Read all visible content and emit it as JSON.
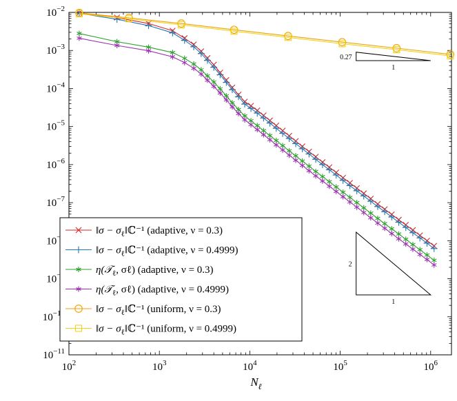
{
  "chart_data": {
    "type": "line",
    "xscale": "log",
    "yscale": "log",
    "xlim": [
      100,
      1700000
    ],
    "ylim": [
      1e-11,
      0.01
    ],
    "xlabel": "N_ℓ",
    "ylabel": "",
    "title": "",
    "grid": false,
    "legend_position": "bottom-left",
    "x_tick_labels": [
      {
        "value": 100,
        "base": "10",
        "exp": "2"
      },
      {
        "value": 1000,
        "base": "10",
        "exp": "3"
      },
      {
        "value": 10000,
        "base": "10",
        "exp": "4"
      },
      {
        "value": 100000,
        "base": "10",
        "exp": "5"
      },
      {
        "value": 1000000,
        "base": "10",
        "exp": "6"
      }
    ],
    "y_tick_labels": [
      {
        "value": 1e-11,
        "base": "10",
        "exp": "−11"
      },
      {
        "value": 1e-10,
        "base": "10",
        "exp": "−10"
      },
      {
        "value": 1e-09,
        "base": "10",
        "exp": "−9"
      },
      {
        "value": 1e-08,
        "base": "10",
        "exp": "−8"
      },
      {
        "value": 1e-07,
        "base": "10",
        "exp": "−7"
      },
      {
        "value": 1e-06,
        "base": "10",
        "exp": "−6"
      },
      {
        "value": 1e-05,
        "base": "10",
        "exp": "−5"
      },
      {
        "value": 0.0001,
        "base": "10",
        "exp": "−4"
      },
      {
        "value": 0.001,
        "base": "10",
        "exp": "−3"
      },
      {
        "value": 0.01,
        "base": "10",
        "exp": "−2"
      }
    ],
    "series": [
      {
        "name": "‖σ − σℓ‖ℂ⁻¹ (adaptive, ν = 0.3)",
        "color": "#d62728",
        "marker": "x",
        "x": [
          130,
          340,
          760,
          1400,
          1900,
          2400,
          2900,
          3400,
          4000,
          4700,
          5500,
          6400,
          7500,
          8800,
          10300,
          12100,
          14200,
          16700,
          19600,
          23100,
          27300,
          32200,
          38100,
          45200,
          53600,
          63700,
          75800,
          90200,
          107400,
          128000,
          152600,
          182100,
          217400,
          259700,
          310300,
          371000,
          443700,
          531000,
          635500,
          761000,
          911600,
          1092000
        ],
        "y": [
          0.0098,
          0.0073,
          0.0051,
          0.0033,
          0.0021,
          0.00143,
          0.00095,
          0.00063,
          0.00042,
          0.00026,
          0.000166,
          0.000106,
          6.9e-05,
          4.5e-05,
          3.5e-05,
          2.65e-05,
          1.96e-05,
          1.44e-05,
          1.06e-05,
          7.8e-06,
          5.7e-06,
          4.15e-06,
          3e-06,
          2.2e-06,
          1.6e-06,
          1.16e-06,
          8.5e-07,
          6.2e-07,
          4.5e-07,
          3.3e-07,
          2.4e-07,
          1.75e-07,
          1.27e-07,
          9.2e-08,
          6.7e-08,
          4.9e-08,
          3.55e-08,
          2.6e-08,
          1.9e-08,
          1.38e-08,
          1e-08,
          7.3e-09
        ]
      },
      {
        "name": "‖σ − σℓ‖ℂ⁻¹ (adaptive, ν = 0.4999)",
        "color": "#1f77b4",
        "marker": "+",
        "x": [
          130,
          340,
          760,
          1400,
          1900,
          2400,
          2900,
          3400,
          4000,
          4700,
          5500,
          6400,
          7500,
          8800,
          10300,
          12100,
          14200,
          16700,
          19600,
          23100,
          27300,
          32200,
          38100,
          45200,
          53600,
          63700,
          75800,
          90200,
          107400,
          128000,
          152600,
          182100,
          217400,
          259700,
          310300,
          371000,
          443700,
          531000,
          635500,
          761000,
          911600,
          1092000
        ],
        "y": [
          0.0095,
          0.0066,
          0.0045,
          0.0029,
          0.00185,
          0.00125,
          0.00083,
          0.00055,
          0.00036,
          0.00023,
          0.000145,
          9.3e-05,
          6.1e-05,
          3.9e-05,
          3e-05,
          2.25e-05,
          1.67e-05,
          1.23e-05,
          9e-06,
          6.6e-06,
          4.85e-06,
          3.55e-06,
          2.6e-06,
          1.9e-06,
          1.38e-06,
          1e-06,
          7.3e-07,
          5.3e-07,
          3.85e-07,
          2.8e-07,
          2.05e-07,
          1.5e-07,
          1.09e-07,
          7.9e-08,
          5.8e-08,
          4.2e-08,
          3.05e-08,
          2.23e-08,
          1.62e-08,
          1.18e-08,
          8.6e-09,
          6.2e-09
        ]
      },
      {
        "name": "η(𝒯ℓ, σℓ) (adaptive, ν = 0.3)",
        "color": "#2ca02c",
        "marker": "*",
        "x": [
          130,
          340,
          760,
          1400,
          1900,
          2400,
          2900,
          3400,
          4000,
          4700,
          5500,
          6400,
          7500,
          8800,
          10300,
          12100,
          14200,
          16700,
          19600,
          23100,
          27300,
          32200,
          38100,
          45200,
          53600,
          63700,
          75800,
          90200,
          107400,
          128000,
          152600,
          182100,
          217400,
          259700,
          310300,
          371000,
          443700,
          531000,
          635500,
          761000,
          911600,
          1092000
        ],
        "y": [
          0.0028,
          0.0017,
          0.00122,
          0.00088,
          0.00062,
          0.00044,
          0.00031,
          0.000215,
          0.000148,
          9.8e-05,
          6.4e-05,
          4.2e-05,
          2.8e-05,
          1.9e-05,
          1.42e-05,
          1.06e-05,
          7.8e-06,
          5.8e-06,
          4.3e-06,
          3.15e-06,
          2.3e-06,
          1.7e-06,
          1.24e-06,
          9.1e-07,
          6.6e-07,
          4.85e-07,
          3.55e-07,
          2.58e-07,
          1.88e-07,
          1.37e-07,
          1e-07,
          7.3e-08,
          5.3e-08,
          3.85e-08,
          2.8e-08,
          2.05e-08,
          1.5e-08,
          1.09e-08,
          7.9e-09,
          5.8e-09,
          4.2e-09,
          3.05e-09
        ]
      },
      {
        "name": "η(𝒯ℓ, σℓ) (adaptive, ν = 0.4999)",
        "color": "#9b30b0",
        "marker": "*",
        "x": [
          130,
          340,
          760,
          1400,
          1900,
          2400,
          2900,
          3400,
          4000,
          4700,
          5500,
          6400,
          7500,
          8800,
          10300,
          12100,
          14200,
          16700,
          19600,
          23100,
          27300,
          32200,
          38100,
          45200,
          53600,
          63700,
          75800,
          90200,
          107400,
          128000,
          152600,
          182100,
          217400,
          259700,
          310300,
          371000,
          443700,
          531000,
          635500,
          761000,
          911600,
          1092000
        ],
        "y": [
          0.0021,
          0.00135,
          0.00098,
          0.00068,
          0.00048,
          0.00034,
          0.00024,
          0.000165,
          0.000114,
          7.6e-05,
          5e-05,
          3.3e-05,
          2.2e-05,
          1.5e-05,
          1.12e-05,
          8.3e-06,
          6.1e-06,
          4.5e-06,
          3.3e-06,
          2.42e-06,
          1.77e-06,
          1.3e-06,
          9.5e-07,
          6.9e-07,
          5.05e-07,
          3.7e-07,
          2.7e-07,
          1.97e-07,
          1.43e-07,
          1.04e-07,
          7.6e-08,
          5.5e-08,
          4e-08,
          2.9e-08,
          2.12e-08,
          1.54e-08,
          1.12e-08,
          8.2e-09,
          6e-09,
          4.35e-09,
          3.2e-09,
          2.3e-09
        ]
      },
      {
        "name": "‖σ − σℓ‖ℂ⁻¹ (uniform, ν = 0.3)",
        "color": "#f0a000",
        "marker": "o",
        "x": [
          130,
          460,
          1750,
          6700,
          26500,
          105000,
          420000,
          1650000
        ],
        "y": [
          0.0097,
          0.0072,
          0.0051,
          0.0035,
          0.0024,
          0.00165,
          0.00115,
          0.00079
        ]
      },
      {
        "name": "‖σ − σℓ‖ℂ⁻¹ (uniform, ν = 0.4999)",
        "color": "#f2d31b",
        "marker": "s",
        "x": [
          130,
          460,
          1750,
          6700,
          26500,
          105000,
          420000,
          1650000
        ],
        "y": [
          0.0092,
          0.0068,
          0.0047,
          0.0032,
          0.0022,
          0.0015,
          0.00105,
          0.00072
        ]
      }
    ],
    "legend": [
      {
        "lead": "‖σ − σ",
        "sub": "ℓ",
        "norm": "‖ℂ⁻¹",
        "tail": " (adaptive, ν = 0.3)"
      },
      {
        "lead": "‖σ − σ",
        "sub": "ℓ",
        "norm": "‖ℂ⁻¹",
        "tail": " (adaptive, ν = 0.4999)"
      },
      {
        "lead": "η(𝒯",
        "sub": "ℓ",
        "norm": ", σℓ)",
        "tail": " (adaptive, ν = 0.3)"
      },
      {
        "lead": "η(𝒯",
        "sub": "ℓ",
        "norm": ", σℓ)",
        "tail": " (adaptive, ν = 0.4999)"
      },
      {
        "lead": "‖σ − σ",
        "sub": "ℓ",
        "norm": "‖ℂ⁻¹",
        "tail": " (uniform, ν = 0.3)"
      },
      {
        "lead": "‖σ − σ",
        "sub": "ℓ",
        "norm": "‖ℂ⁻¹",
        "tail": " (uniform, ν = 0.4999)"
      }
    ],
    "annotations": [
      {
        "name": "uniform-slope-triangle",
        "slope": 0.27,
        "rise_label": "0.27",
        "run_label": "1",
        "x_start": 150000,
        "x_end": 1000000
      },
      {
        "name": "adaptive-slope-triangle",
        "slope": 2,
        "rise_label": "2",
        "run_label": "1",
        "x_start": 150000,
        "x_end": 1000000
      }
    ]
  }
}
